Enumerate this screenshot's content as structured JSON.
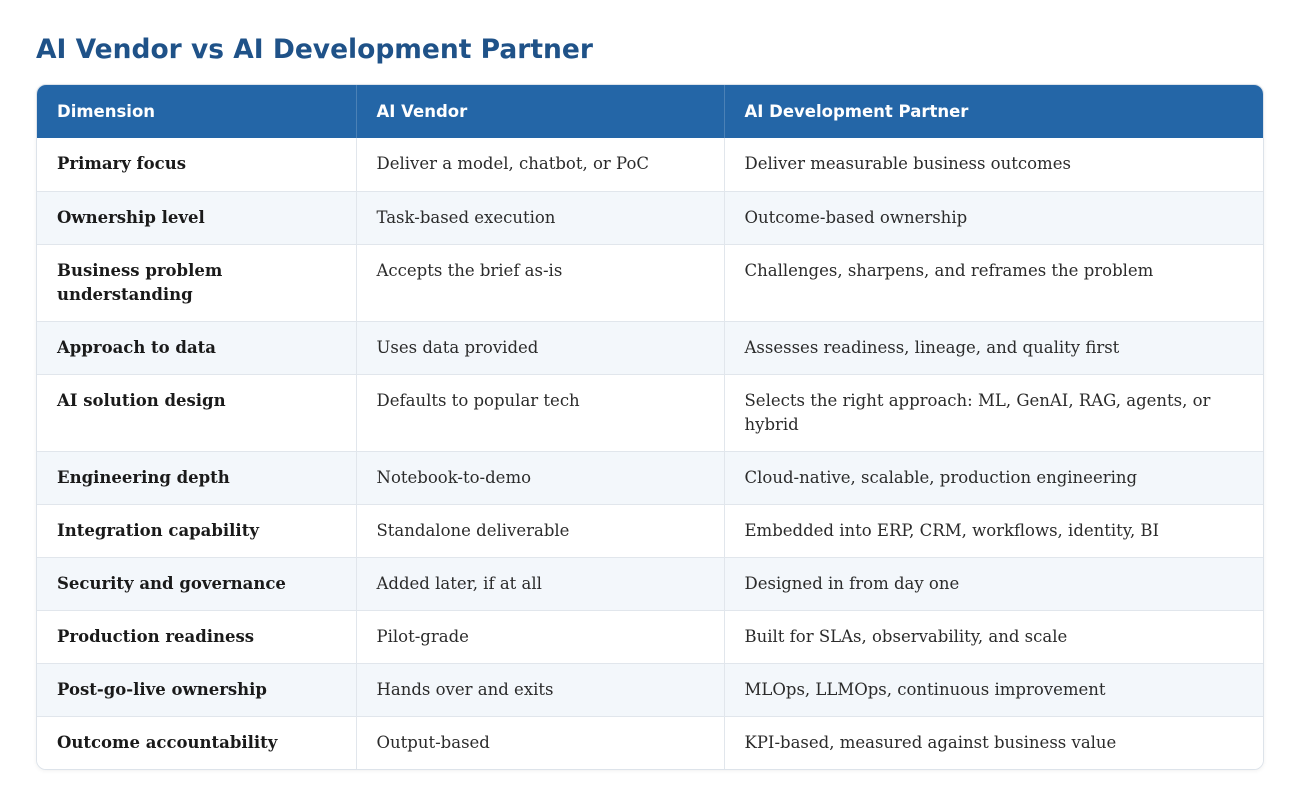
{
  "title": "AI Vendor vs AI Development Partner",
  "table": {
    "headers": [
      "Dimension",
      "AI Vendor",
      "AI Development Partner"
    ],
    "rows": [
      {
        "dimension": "Primary focus",
        "vendor": "Deliver a model, chatbot, or PoC",
        "partner": "Deliver measurable business outcomes"
      },
      {
        "dimension": "Ownership level",
        "vendor": "Task-based execution",
        "partner": "Outcome-based ownership"
      },
      {
        "dimension": "Business problem understanding",
        "vendor": "Accepts the brief as-is",
        "partner": "Challenges, sharpens, and reframes the problem"
      },
      {
        "dimension": "Approach to data",
        "vendor": "Uses data provided",
        "partner": "Assesses readiness, lineage, and quality first"
      },
      {
        "dimension": "AI solution design",
        "vendor": "Defaults to popular tech",
        "partner": "Selects the right approach: ML, GenAI, RAG, agents, or hybrid"
      },
      {
        "dimension": "Engineering depth",
        "vendor": "Notebook-to-demo",
        "partner": "Cloud-native, scalable, production engineering"
      },
      {
        "dimension": "Integration capability",
        "vendor": "Standalone deliverable",
        "partner": "Embedded into ERP, CRM, workflows, identity, BI"
      },
      {
        "dimension": "Security and governance",
        "vendor": "Added later, if at all",
        "partner": "Designed in from day one"
      },
      {
        "dimension": "Production readiness",
        "vendor": "Pilot-grade",
        "partner": "Built for SLAs, observability, and scale"
      },
      {
        "dimension": "Post-go-live ownership",
        "vendor": "Hands over and exits",
        "partner": "MLOps, LLMOps, continuous improvement"
      },
      {
        "dimension": "Outcome accountability",
        "vendor": "Output-based",
        "partner": "KPI-based, measured against business value"
      }
    ]
  },
  "colors": {
    "title": "#1f5288",
    "header_bg": "#2466a7",
    "header_text": "#ffffff",
    "row_alt_bg": "#f3f7fb",
    "border": "#e1e6ec"
  }
}
